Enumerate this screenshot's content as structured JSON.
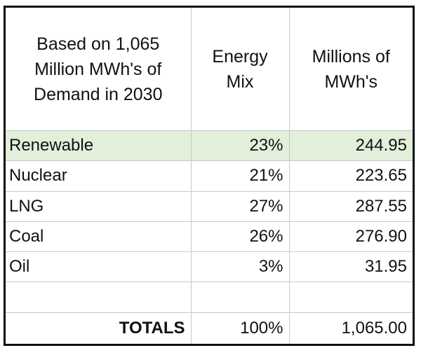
{
  "table": {
    "header": [
      [
        "Based on 1,065",
        "Million MWh's of",
        "Demand in 2030"
      ],
      [
        "Energy",
        "Mix"
      ],
      [
        "Millions of",
        "MWh's"
      ]
    ],
    "rows": [
      [
        "Renewable",
        "23%",
        "244.95"
      ],
      [
        "Nuclear",
        "21%",
        "223.65"
      ],
      [
        "LNG",
        "27%",
        "287.55"
      ],
      [
        "Coal",
        "26%",
        "276.90"
      ],
      [
        "Oil",
        "3%",
        "31.95"
      ]
    ],
    "totals": [
      "TOTALS",
      "100%",
      "1,065.00"
    ]
  }
}
